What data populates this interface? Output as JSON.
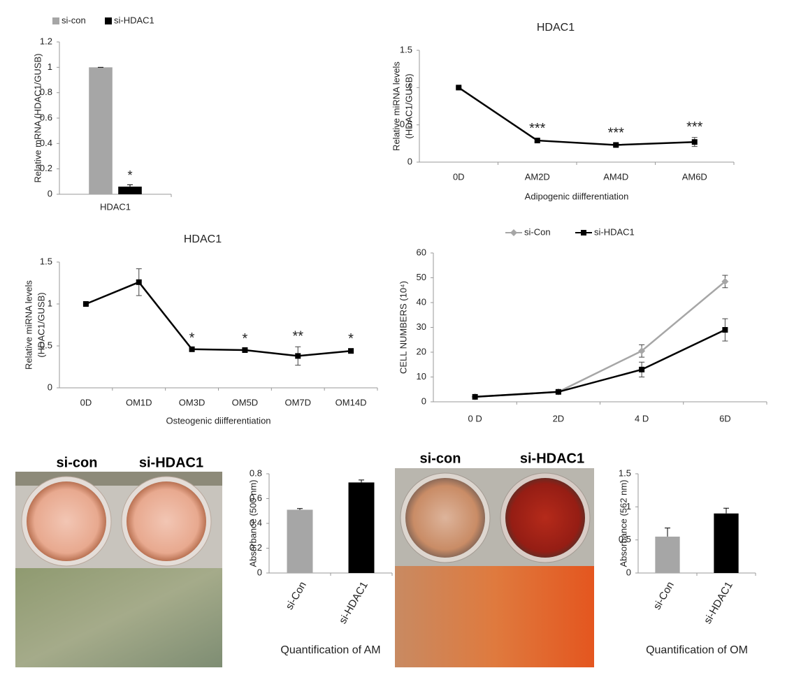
{
  "chart_data": [
    {
      "type": "bar",
      "ylabel": [
        "Relative mRNA (HDAC1/GUSB)"
      ],
      "categories": [
        "HDAC1"
      ],
      "series": [
        {
          "name": "si-con",
          "color": "#a6a6a6",
          "values": [
            1.0
          ],
          "errors": [
            0
          ]
        },
        {
          "name": "si-HDAC1",
          "color": "#000000",
          "values": [
            0.06
          ],
          "errors": [
            0.015
          ],
          "annotations": [
            "*"
          ]
        }
      ],
      "ylim": [
        0,
        1.2
      ],
      "yticks": [
        0,
        0.2,
        0.4,
        0.6,
        0.8,
        1,
        1.2
      ]
    },
    {
      "type": "line",
      "title": "HDAC1",
      "ylabel": [
        "Relative miRNA levels",
        "(HDAC1/GUSB)"
      ],
      "xlabel": "Adipogenic diifferentiation",
      "categories": [
        "0D",
        "AM2D",
        "AM4D",
        "AM6D"
      ],
      "series": [
        {
          "color": "#000000",
          "marker": "square",
          "values": [
            1,
            0.29,
            0.23,
            0.27
          ],
          "errors": [
            0.01,
            0.02,
            0.02,
            0.06
          ],
          "annotations": [
            null,
            "***",
            "***",
            "***"
          ]
        }
      ],
      "ylim": [
        0,
        1.5
      ],
      "yticks": [
        0,
        0.5,
        1,
        1.5
      ]
    },
    {
      "type": "line",
      "title": "HDAC1",
      "ylabel": [
        "Relative miRNA levels",
        "(HDAC1/GUSB)"
      ],
      "xlabel": "Osteogenic diifferentiation",
      "categories": [
        "0D",
        "OM1D",
        "OM3D",
        "OM5D",
        "OM7D",
        "OM14D"
      ],
      "series": [
        {
          "color": "#000000",
          "marker": "square",
          "values": [
            1,
            1.26,
            0.46,
            0.45,
            0.38,
            0.44
          ],
          "errors": [
            0.01,
            0.16,
            0.01,
            0.01,
            0.11,
            0.02
          ],
          "annotations": [
            null,
            null,
            "*",
            "*",
            "**",
            "*"
          ]
        }
      ],
      "ylim": [
        0,
        1.5
      ],
      "yticks": [
        0,
        0.5,
        1,
        1.5
      ]
    },
    {
      "type": "line",
      "ylabel": [
        "CELL NUMBERS (10⁴)"
      ],
      "categories": [
        "0 D",
        "2D",
        "4 D",
        "6D"
      ],
      "series": [
        {
          "name": "si-Con",
          "color": "#a6a6a6",
          "marker": "diamond",
          "values": [
            2,
            4,
            20.5,
            48.5
          ],
          "errors": [
            0,
            0.5,
            2.5,
            2.5
          ]
        },
        {
          "name": "si-HDAC1",
          "color": "#000000",
          "marker": "square",
          "values": [
            2,
            4,
            13,
            29
          ],
          "errors": [
            0,
            0.5,
            3,
            4.5
          ]
        }
      ],
      "ylim": [
        0,
        60
      ],
      "yticks": [
        0,
        10,
        20,
        30,
        40,
        50,
        60
      ]
    },
    {
      "type": "bar",
      "ylabel": [
        "Absorbance (500 nm)"
      ],
      "xlabel": "Quantification of AM",
      "categories": [
        "si-Con",
        "si-HDAC1"
      ],
      "series": [
        {
          "colors": [
            "#a6a6a6",
            "#000000"
          ],
          "values": [
            0.51,
            0.73
          ],
          "errors": [
            0.01,
            0.02
          ]
        }
      ],
      "ylim": [
        0,
        0.8
      ],
      "yticks": [
        0,
        0.2,
        0.4,
        0.6,
        0.8
      ]
    },
    {
      "type": "bar",
      "ylabel": [
        "Absorbance (562 nm)"
      ],
      "xlabel": "Quantification of OM",
      "categories": [
        "si-Con",
        "si-HDAC1"
      ],
      "series": [
        {
          "colors": [
            "#a6a6a6",
            "#000000"
          ],
          "values": [
            0.55,
            0.9
          ],
          "errors": [
            0.13,
            0.08
          ]
        }
      ],
      "ylim": [
        0,
        1.5
      ],
      "yticks": [
        0,
        0.5,
        1,
        1.5
      ]
    }
  ],
  "photos": [
    {
      "labels": [
        "si-con",
        "si-HDAC1"
      ]
    },
    {
      "labels": [
        "si-con",
        "si-HDAC1"
      ]
    }
  ]
}
